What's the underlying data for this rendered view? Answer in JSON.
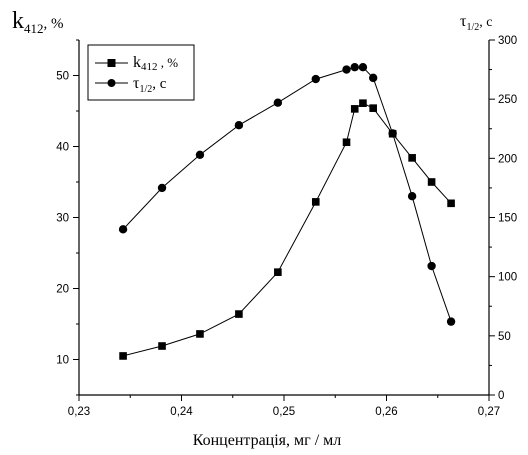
{
  "chart_data": {
    "type": "line",
    "xlabel": "Концентрація, мг / мл",
    "ylabel_left": {
      "main": "k",
      "sub": "412",
      "suffix": ", %"
    },
    "ylabel_right": {
      "main": "τ",
      "sub": "1/2",
      "suffix": ", c"
    },
    "xlim": [
      0.23,
      0.27
    ],
    "ylim_left": [
      5,
      55
    ],
    "ylim_right": [
      0,
      300
    ],
    "x_ticks": [
      0.23,
      0.24,
      0.25,
      0.26,
      0.27
    ],
    "x_tick_labels": [
      "0,23",
      "0,24",
      "0,25",
      "0,26",
      "0,27"
    ],
    "y_left_ticks": [
      10,
      20,
      30,
      40,
      50
    ],
    "y_left_tick_labels": [
      "10",
      "20",
      "30",
      "40",
      "50"
    ],
    "y_right_ticks": [
      0,
      50,
      100,
      150,
      200,
      250,
      300
    ],
    "y_right_tick_labels": [
      "0",
      "50",
      "100",
      "150",
      "200",
      "250",
      "300"
    ],
    "legend_position": "top-left",
    "grid": false,
    "series": [
      {
        "name": {
          "main": "k",
          "sub": "412",
          "suffix": " , %"
        },
        "axis": "left",
        "marker": "square",
        "color": "#000000",
        "x": [
          0.2343,
          0.2381,
          0.2418,
          0.2456,
          0.2494,
          0.2531,
          0.2561,
          0.2569,
          0.2577,
          0.2587,
          0.2606,
          0.2625,
          0.2644,
          0.2663
        ],
        "y": [
          10.5,
          11.9,
          13.6,
          16.4,
          22.3,
          32.2,
          40.6,
          45.3,
          46.1,
          45.4,
          41.8,
          38.4,
          35.0,
          32.0
        ]
      },
      {
        "name": {
          "main": "τ",
          "sub": "1/2",
          "suffix": ", c"
        },
        "axis": "right",
        "marker": "circle",
        "color": "#000000",
        "x": [
          0.2343,
          0.2381,
          0.2418,
          0.2456,
          0.2494,
          0.2531,
          0.2561,
          0.2569,
          0.2577,
          0.2587,
          0.2606,
          0.2625,
          0.2644,
          0.2663
        ],
        "y": [
          140,
          175,
          203,
          228,
          247,
          267,
          275,
          277,
          277,
          268,
          221,
          168,
          109,
          62
        ]
      }
    ]
  }
}
